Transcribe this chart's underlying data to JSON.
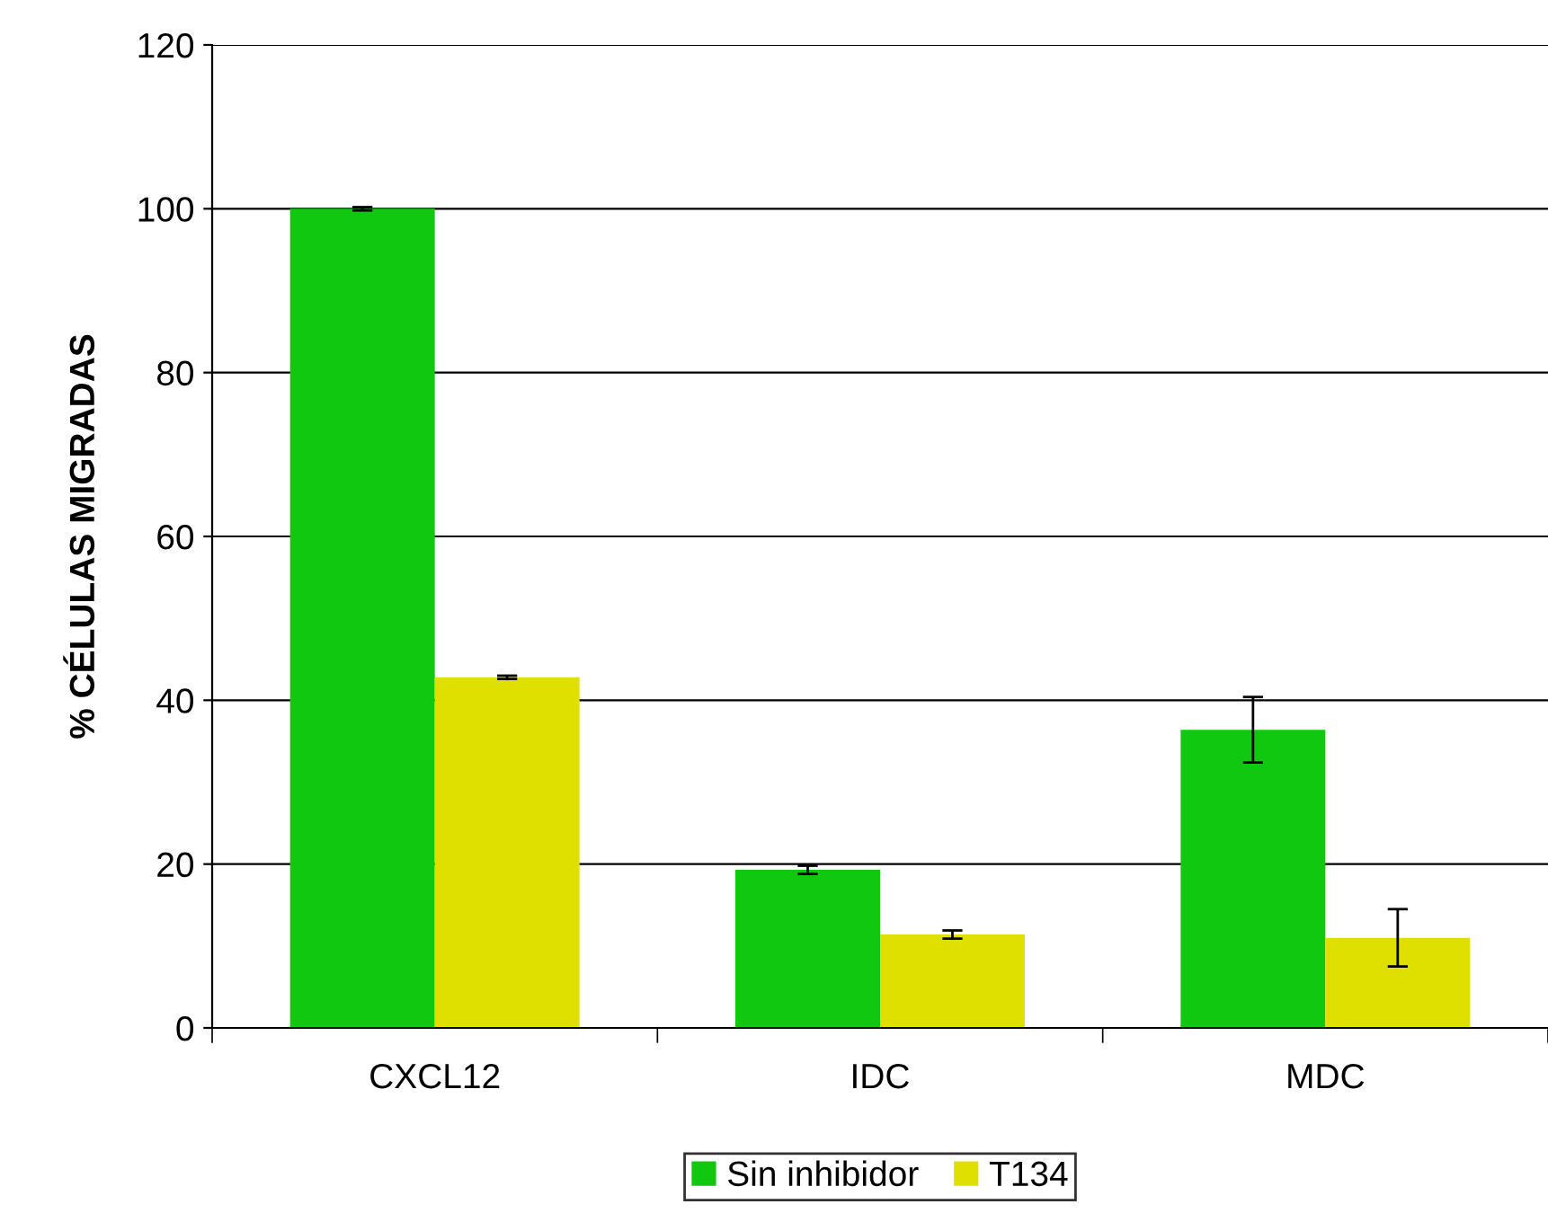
{
  "chart_data": {
    "type": "bar",
    "ylabel": "% CÉLULAS MIGRADAS",
    "categories": [
      "CXCL12",
      "IDC",
      "MDC"
    ],
    "series": [
      {
        "name": "Sin inhibidor",
        "color": "#11c811",
        "values": [
          100,
          19.3,
          36.4
        ],
        "errors": [
          0.2,
          0.5,
          4
        ]
      },
      {
        "name": "T134",
        "color": "#e0e000",
        "values": [
          42.8,
          11.4,
          11
        ],
        "errors": [
          0.2,
          0.5,
          3.5
        ]
      }
    ],
    "ylim": [
      0,
      120
    ],
    "yticks": [
      0,
      20,
      40,
      60,
      80,
      100,
      120
    ],
    "grid": "y",
    "legend": "bottom"
  }
}
